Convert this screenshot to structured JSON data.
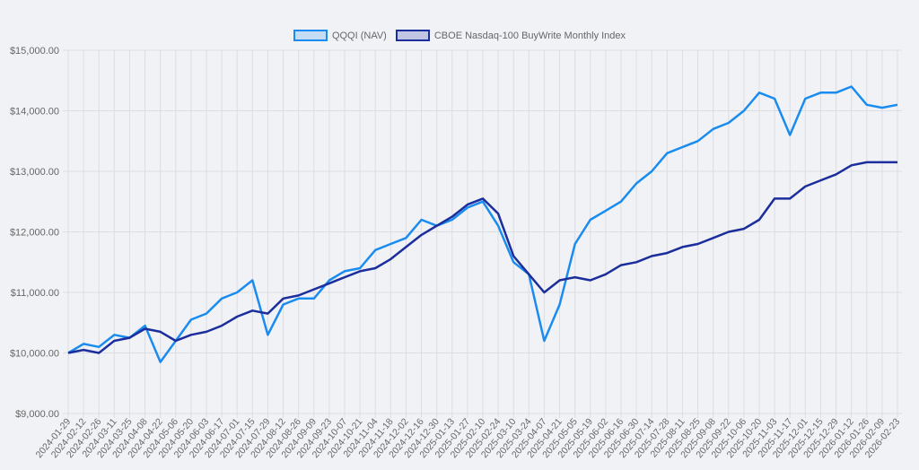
{
  "chart_data": {
    "type": "line",
    "title": "",
    "xlabel": "",
    "ylabel": "",
    "ylim": [
      9000,
      15000
    ],
    "y_ticks": [
      "$9,000.00",
      "$10,000.00",
      "$11,000.00",
      "$12,000.00",
      "$13,000.00",
      "$14,000.00",
      "$15,000.00"
    ],
    "y_tick_values": [
      9000,
      10000,
      11000,
      12000,
      13000,
      14000,
      15000
    ],
    "x_ticks": [
      "2024-01-29",
      "2024-02-12",
      "2024-02-26",
      "2024-03-11",
      "2024-03-25",
      "2024-04-08",
      "2024-04-22",
      "2024-05-06",
      "2024-05-20",
      "2024-06-03",
      "2024-06-17",
      "2024-07-01",
      "2024-07-15",
      "2024-07-29",
      "2024-08-12",
      "2024-08-26",
      "2024-09-09",
      "2024-09-23",
      "2024-10-07",
      "2024-10-21",
      "2024-11-04",
      "2024-11-18",
      "2024-12-02",
      "2024-12-16",
      "2024-12-30",
      "2025-01-13",
      "2025-01-27",
      "2025-02-10",
      "2025-02-24",
      "2025-03-10",
      "2025-03-24",
      "2025-04-07",
      "2025-04-21",
      "2025-05-05",
      "2025-05-19",
      "2025-06-02",
      "2025-06-16",
      "2025-06-30",
      "2025-07-14",
      "2025-07-28",
      "2025-08-11",
      "2025-08-25",
      "2025-09-08",
      "2025-09-22",
      "2025-10-06",
      "2025-10-20",
      "2025-11-03",
      "2025-11-17",
      "2025-12-01",
      "2025-12-15",
      "2025-12-29",
      "2026-01-12",
      "2026-01-26",
      "2026-02-09",
      "2026-02-23"
    ],
    "grid": true,
    "legend_position": "top-center",
    "series": [
      {
        "name": "QQQI (NAV)",
        "color": "#1a8cf0",
        "fill": "#c5dcf5",
        "values": [
          10000,
          10150,
          10100,
          10300,
          10250,
          10450,
          9850,
          10200,
          10550,
          10650,
          10900,
          11000,
          11200,
          10300,
          10800,
          10900,
          10900,
          11200,
          11350,
          11400,
          11700,
          11800,
          11900,
          12200,
          12100,
          12200,
          12400,
          12500,
          12100,
          11500,
          11300,
          10200,
          10800,
          11800,
          12200,
          12350,
          12500,
          12800,
          13000,
          13300,
          13400,
          13500,
          13700,
          13800,
          14000,
          14300,
          14200,
          13600,
          14200,
          14300,
          14300,
          14400,
          14100,
          14050,
          14100
        ]
      },
      {
        "name": "CBOE Nasdaq-100 BuyWrite Monthly Index",
        "color": "#1b2e9c",
        "fill": "#c0c5e3",
        "values": [
          10000,
          10050,
          10000,
          10200,
          10250,
          10400,
          10350,
          10200,
          10300,
          10350,
          10450,
          10600,
          10700,
          10650,
          10900,
          10950,
          11050,
          11150,
          11250,
          11350,
          11400,
          11550,
          11750,
          11950,
          12100,
          12250,
          12450,
          12550,
          12300,
          11600,
          11300,
          11000,
          11200,
          11250,
          11200,
          11300,
          11450,
          11500,
          11600,
          11650,
          11750,
          11800,
          11900,
          12000,
          12050,
          12200,
          12550,
          12550,
          12750,
          12850,
          12950,
          13100,
          13150,
          13150,
          13150
        ]
      }
    ]
  }
}
